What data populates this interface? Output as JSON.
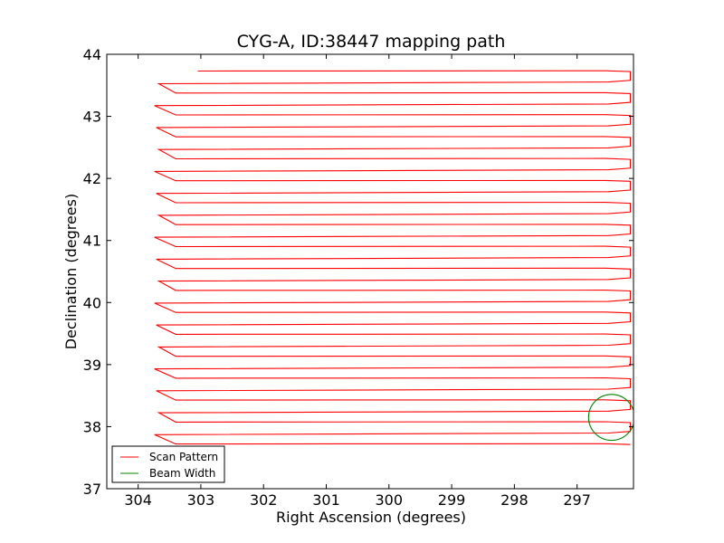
{
  "chart_data": {
    "type": "line",
    "title": "CYG-A, ID:38447 mapping path",
    "xlabel": "Right Ascension (degrees)",
    "ylabel": "Declination (degrees)",
    "xlim": [
      304.5,
      296.1
    ],
    "ylim": [
      37,
      44
    ],
    "x_ticks": [
      304,
      303,
      302,
      301,
      300,
      299,
      298,
      297
    ],
    "y_ticks": [
      37,
      38,
      39,
      40,
      41,
      42,
      43,
      44
    ],
    "grid": false,
    "legend_position": "lower-left",
    "legend": [
      "Scan Pattern",
      "Beam Width"
    ],
    "series": [
      {
        "name": "Scan Pattern",
        "color": "#ff0000",
        "pattern": "boustrophedon raster scan, alternating rows",
        "ra_west": 303.7,
        "ra_east": 296.15,
        "ra_start": 303.05,
        "dec_start": 43.73,
        "dec_end": 37.72,
        "row_count": 35
      },
      {
        "name": "Beam Width",
        "color": "#008000",
        "shape": "circle",
        "center_ra": 296.45,
        "center_dec": 38.15,
        "radius_deg": 0.37
      }
    ]
  }
}
